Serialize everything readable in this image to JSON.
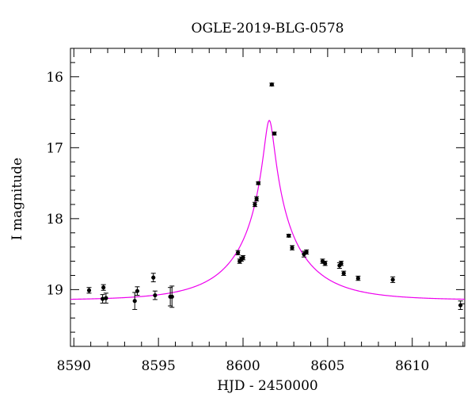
{
  "chart_data": {
    "type": "scatter",
    "title": "OGLE-2019-BLG-0578",
    "xlabel": "HJD - 2450000",
    "ylabel": "I magnitude",
    "xlim": [
      8589.8,
      8613.1
    ],
    "ylim": [
      19.8,
      15.6
    ],
    "y_inverted": true,
    "grid": false,
    "x_ticks": [
      8590,
      8595,
      8600,
      8605,
      8610
    ],
    "y_ticks": [
      16,
      17,
      18,
      19
    ],
    "model_color": "#ee00ee",
    "point_color": "#000000",
    "model": {
      "type": "point-lens",
      "t0": 8601.55,
      "u0": 0.07,
      "tE": 4.0,
      "baseline_mag": 19.15,
      "fs": 0.7
    },
    "series": [
      {
        "points": [
          {
            "x": 8590.9,
            "y": 19.01,
            "err": 0.04
          },
          {
            "x": 8591.7,
            "y": 19.13,
            "err": 0.06
          },
          {
            "x": 8591.75,
            "y": 18.97,
            "err": 0.04
          },
          {
            "x": 8591.9,
            "y": 19.12,
            "err": 0.07
          },
          {
            "x": 8593.6,
            "y": 19.16,
            "err": 0.12
          },
          {
            "x": 8593.75,
            "y": 19.02,
            "err": 0.06
          },
          {
            "x": 8594.7,
            "y": 18.83,
            "err": 0.06
          },
          {
            "x": 8594.8,
            "y": 19.08,
            "err": 0.06
          },
          {
            "x": 8595.7,
            "y": 19.1,
            "err": 0.13
          },
          {
            "x": 8595.8,
            "y": 19.1,
            "err": 0.15
          },
          {
            "x": 8599.7,
            "y": 18.48,
            "err": 0.03
          },
          {
            "x": 8599.8,
            "y": 18.6,
            "err": 0.03
          },
          {
            "x": 8599.9,
            "y": 18.57,
            "err": 0.03
          },
          {
            "x": 8600.0,
            "y": 18.55,
            "err": 0.03
          },
          {
            "x": 8600.7,
            "y": 17.8,
            "err": 0.03
          },
          {
            "x": 8600.8,
            "y": 17.72,
            "err": 0.03
          },
          {
            "x": 8600.9,
            "y": 17.5,
            "err": 0.02
          },
          {
            "x": 8601.7,
            "y": 16.11,
            "err": 0.02
          },
          {
            "x": 8601.85,
            "y": 16.8,
            "err": 0.02
          },
          {
            "x": 8602.7,
            "y": 18.24,
            "err": 0.02
          },
          {
            "x": 8602.9,
            "y": 18.41,
            "err": 0.03
          },
          {
            "x": 8603.6,
            "y": 18.5,
            "err": 0.04
          },
          {
            "x": 8603.75,
            "y": 18.47,
            "err": 0.03
          },
          {
            "x": 8604.7,
            "y": 18.6,
            "err": 0.03
          },
          {
            "x": 8604.85,
            "y": 18.63,
            "err": 0.03
          },
          {
            "x": 8605.7,
            "y": 18.66,
            "err": 0.04
          },
          {
            "x": 8605.8,
            "y": 18.63,
            "err": 0.03
          },
          {
            "x": 8605.95,
            "y": 18.77,
            "err": 0.03
          },
          {
            "x": 8606.8,
            "y": 18.84,
            "err": 0.03
          },
          {
            "x": 8608.85,
            "y": 18.86,
            "err": 0.04
          },
          {
            "x": 8612.85,
            "y": 19.22,
            "err": 0.06
          }
        ]
      }
    ]
  }
}
